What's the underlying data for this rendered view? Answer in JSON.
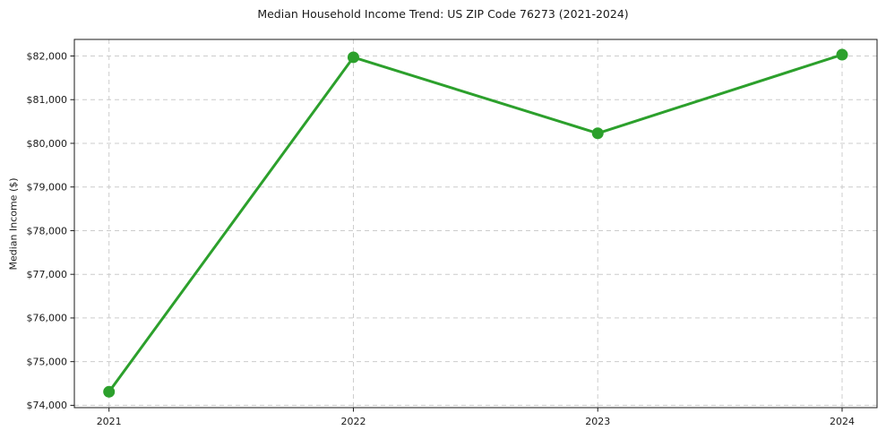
{
  "chart_data": {
    "type": "line",
    "title": "Median Household Income Trend: US ZIP Code 76273 (2021-2024)",
    "ylabel": "Median Income ($)",
    "xlabel": "",
    "categories": [
      "2021",
      "2022",
      "2023",
      "2024"
    ],
    "values": [
      74310,
      81970,
      80230,
      82030
    ],
    "ylim": [
      74000,
      82000
    ],
    "ytick_step": 1000,
    "ytick_labels": [
      "$74,000",
      "$75,000",
      "$76,000",
      "$77,000",
      "$78,000",
      "$79,000",
      "$80,000",
      "$81,000",
      "$82,000"
    ],
    "grid": "dashed, both axes",
    "legend": "none",
    "line_color": "#2ca02c",
    "marker": "circle",
    "marker_color": "#2ca02c",
    "background_color": "#ffffff",
    "axis_color": "#1a1a1a",
    "grid_color": "#cccccc",
    "text_color": "#1a1a1a"
  }
}
